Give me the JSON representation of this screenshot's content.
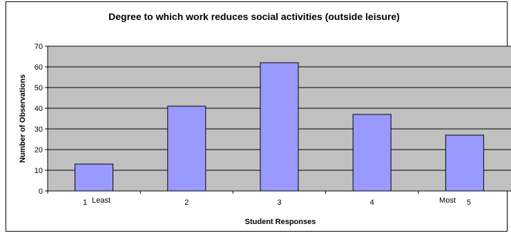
{
  "chart_data": {
    "type": "bar",
    "title": "Degree to which work reduces social activities (outside leisure)",
    "xlabel": "Student Responses",
    "ylabel": "Number of Observations",
    "categories": [
      "1",
      "2",
      "3",
      "4",
      "5"
    ],
    "category_notes": [
      "Least",
      "",
      "",
      "",
      "Most"
    ],
    "values": [
      13,
      41,
      62,
      37,
      27
    ],
    "ylim": [
      0,
      70
    ],
    "yticks": [
      0,
      10,
      20,
      30,
      40,
      50,
      60,
      70
    ],
    "grid": true,
    "legend": "none",
    "colors": {
      "bar_fill": "#9999ff",
      "plot_background": "#c0c0c0",
      "gridline": "#000000"
    }
  }
}
